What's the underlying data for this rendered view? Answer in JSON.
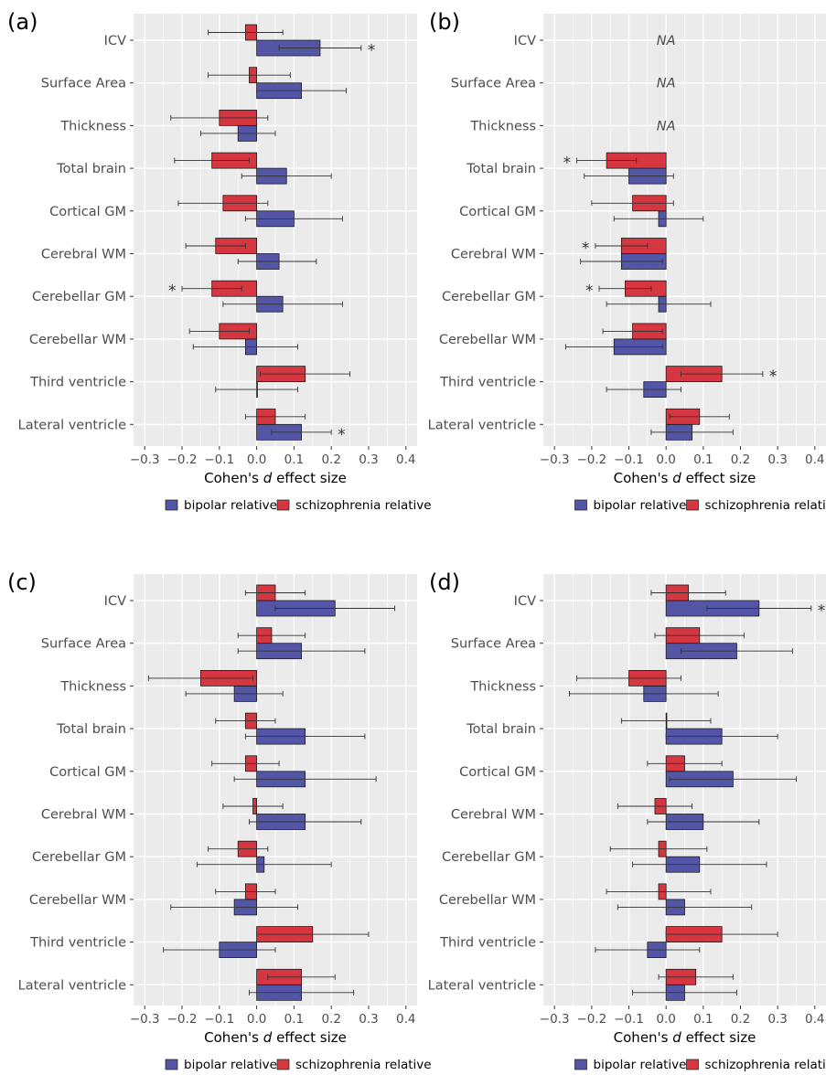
{
  "categories": [
    "ICV",
    "Surface Area",
    "Thickness",
    "Total brain",
    "Cortical GM",
    "Cerebral WM",
    "Cerebellar GM",
    "Cerebellar WM",
    "Third ventricle",
    "Lateral ventricle"
  ],
  "colors": {
    "bipolar": "#5356a6",
    "schizophrenia": "#d5363f",
    "panel_bg": "#ebebeb",
    "grid": "#ffffff"
  },
  "chart_data": [
    {
      "type": "bar",
      "panel": "(a)",
      "orientation": "horizontal",
      "xlabel_pre": "Cohen's ",
      "xlabel_italic": "d",
      "xlabel_post": " effect size",
      "xlim": [
        -0.33,
        0.43
      ],
      "xticks": [
        -0.3,
        -0.2,
        -0.1,
        0.0,
        0.1,
        0.2,
        0.3,
        0.4
      ],
      "xtick_labels": [
        "−0.3",
        "−0.2",
        "−0.1",
        "0.0",
        "0.1",
        "0.2",
        "0.3",
        "0.4"
      ],
      "legend": [
        "bipolar relative",
        "schizophrenia relative"
      ],
      "na_label": "",
      "series": [
        {
          "name": "bipolar relative",
          "key": "bipolar",
          "values": [
            0.17,
            0.12,
            -0.05,
            0.08,
            0.1,
            0.06,
            0.07,
            -0.03,
            0.0,
            0.12
          ],
          "ci_low": [
            0.06,
            0.0,
            -0.15,
            -0.04,
            -0.03,
            -0.05,
            -0.09,
            -0.17,
            -0.11,
            0.04
          ],
          "ci_high": [
            0.28,
            0.24,
            0.05,
            0.2,
            0.23,
            0.16,
            0.23,
            0.11,
            0.11,
            0.2
          ],
          "sig": [
            true,
            false,
            false,
            false,
            false,
            false,
            false,
            false,
            false,
            true
          ]
        },
        {
          "name": "schizophrenia relative",
          "key": "schizophrenia",
          "values": [
            -0.03,
            -0.02,
            -0.1,
            -0.12,
            -0.09,
            -0.11,
            -0.12,
            -0.1,
            0.13,
            0.05
          ],
          "ci_low": [
            -0.13,
            -0.13,
            -0.23,
            -0.22,
            -0.21,
            -0.19,
            -0.2,
            -0.18,
            0.01,
            -0.03
          ],
          "ci_high": [
            0.07,
            0.09,
            0.03,
            -0.02,
            0.03,
            -0.03,
            -0.04,
            -0.02,
            0.25,
            0.13
          ],
          "sig": [
            false,
            false,
            false,
            false,
            false,
            false,
            true,
            false,
            false,
            false
          ]
        }
      ]
    },
    {
      "type": "bar",
      "panel": "(b)",
      "orientation": "horizontal",
      "xlabel_pre": "Cohen's ",
      "xlabel_italic": "d",
      "xlabel_post": " effect size",
      "xlim": [
        -0.33,
        0.43
      ],
      "xticks": [
        -0.3,
        -0.2,
        -0.1,
        0.0,
        0.1,
        0.2,
        0.3,
        0.4
      ],
      "xtick_labels": [
        "−0.3",
        "−0.2",
        "−0.1",
        "0.0",
        "0.1",
        "0.2",
        "0.3",
        "0.4"
      ],
      "legend": [
        "bipolar relative",
        "schizophrenia relative"
      ],
      "na_label": "NA",
      "series": [
        {
          "name": "bipolar relative",
          "key": "bipolar",
          "values": [
            null,
            null,
            null,
            -0.1,
            -0.02,
            -0.12,
            -0.02,
            -0.14,
            -0.06,
            0.07
          ],
          "ci_low": [
            null,
            null,
            null,
            -0.22,
            -0.14,
            -0.23,
            -0.16,
            -0.27,
            -0.16,
            -0.04
          ],
          "ci_high": [
            null,
            null,
            null,
            0.02,
            0.1,
            -0.01,
            0.12,
            -0.01,
            0.04,
            0.18
          ],
          "sig": [
            false,
            false,
            false,
            false,
            false,
            false,
            false,
            false,
            false,
            false
          ]
        },
        {
          "name": "schizophrenia relative",
          "key": "schizophrenia",
          "values": [
            null,
            null,
            null,
            -0.16,
            -0.09,
            -0.12,
            -0.11,
            -0.09,
            0.15,
            0.09
          ],
          "ci_low": [
            null,
            null,
            null,
            -0.24,
            -0.2,
            -0.19,
            -0.18,
            -0.17,
            0.04,
            0.01
          ],
          "ci_high": [
            null,
            null,
            null,
            -0.08,
            0.02,
            -0.05,
            -0.04,
            -0.01,
            0.26,
            0.17
          ],
          "sig": [
            false,
            false,
            false,
            true,
            false,
            true,
            true,
            false,
            true,
            false
          ]
        }
      ]
    },
    {
      "type": "bar",
      "panel": "(c)",
      "orientation": "horizontal",
      "xlabel_pre": "Cohen's ",
      "xlabel_italic": "d",
      "xlabel_post": " effect size",
      "xlim": [
        -0.33,
        0.43
      ],
      "xticks": [
        -0.3,
        -0.2,
        -0.1,
        0.0,
        0.1,
        0.2,
        0.3,
        0.4
      ],
      "xtick_labels": [
        "−0.3",
        "−0.2",
        "−0.1",
        "0.0",
        "0.1",
        "0.2",
        "0.3",
        "0.4"
      ],
      "legend": [
        "bipolar relative",
        "schizophrenia relative"
      ],
      "na_label": "",
      "series": [
        {
          "name": "bipolar relative",
          "key": "bipolar",
          "values": [
            0.21,
            0.12,
            -0.06,
            0.13,
            0.13,
            0.13,
            0.02,
            -0.06,
            -0.1,
            0.12
          ],
          "ci_low": [
            0.05,
            -0.05,
            -0.19,
            -0.03,
            -0.06,
            -0.02,
            -0.16,
            -0.23,
            -0.25,
            -0.02
          ],
          "ci_high": [
            0.37,
            0.29,
            0.07,
            0.29,
            0.32,
            0.28,
            0.2,
            0.11,
            0.05,
            0.26
          ],
          "sig": [
            false,
            false,
            false,
            false,
            false,
            false,
            false,
            false,
            false,
            false
          ]
        },
        {
          "name": "schizophrenia relative",
          "key": "schizophrenia",
          "values": [
            0.05,
            0.04,
            -0.15,
            -0.03,
            -0.03,
            -0.01,
            -0.05,
            -0.03,
            0.15,
            0.12
          ],
          "ci_low": [
            -0.03,
            -0.05,
            -0.29,
            -0.11,
            -0.12,
            -0.09,
            -0.13,
            -0.11,
            0.0,
            0.03
          ],
          "ci_high": [
            0.13,
            0.13,
            -0.01,
            0.05,
            0.06,
            0.07,
            0.03,
            0.05,
            0.3,
            0.21
          ],
          "sig": [
            false,
            false,
            false,
            false,
            false,
            false,
            false,
            false,
            false,
            false
          ]
        }
      ]
    },
    {
      "type": "bar",
      "panel": "(d)",
      "orientation": "horizontal",
      "xlabel_pre": "Cohen's ",
      "xlabel_italic": "d",
      "xlabel_post": " effect size",
      "xlim": [
        -0.33,
        0.43
      ],
      "xticks": [
        -0.3,
        -0.2,
        -0.1,
        0.0,
        0.1,
        0.2,
        0.3,
        0.4
      ],
      "xtick_labels": [
        "−0.3",
        "−0.2",
        "−0.1",
        "0.0",
        "0.1",
        "0.2",
        "0.3",
        "0.4"
      ],
      "legend": [
        "bipolar relative",
        "schizophrenia relative"
      ],
      "na_label": "",
      "series": [
        {
          "name": "bipolar relative",
          "key": "bipolar",
          "values": [
            0.25,
            0.19,
            -0.06,
            0.15,
            0.18,
            0.1,
            0.09,
            0.05,
            -0.05,
            0.05
          ],
          "ci_low": [
            0.11,
            0.04,
            -0.26,
            0.0,
            0.01,
            -0.05,
            -0.09,
            -0.13,
            -0.19,
            -0.09
          ],
          "ci_high": [
            0.39,
            0.34,
            0.14,
            0.3,
            0.35,
            0.25,
            0.27,
            0.23,
            0.09,
            0.19
          ],
          "sig": [
            true,
            false,
            false,
            false,
            false,
            false,
            false,
            false,
            false,
            false
          ]
        },
        {
          "name": "schizophrenia relative",
          "key": "schizophrenia",
          "values": [
            0.06,
            0.09,
            -0.1,
            0.0,
            0.05,
            -0.03,
            -0.02,
            -0.02,
            0.15,
            0.08
          ],
          "ci_low": [
            -0.04,
            -0.03,
            -0.24,
            -0.12,
            -0.05,
            -0.13,
            -0.15,
            -0.16,
            0.0,
            -0.02
          ],
          "ci_high": [
            0.16,
            0.21,
            0.04,
            0.12,
            0.15,
            0.07,
            0.11,
            0.12,
            0.3,
            0.18
          ],
          "sig": [
            false,
            false,
            false,
            false,
            false,
            false,
            false,
            false,
            false,
            false
          ]
        }
      ]
    }
  ]
}
